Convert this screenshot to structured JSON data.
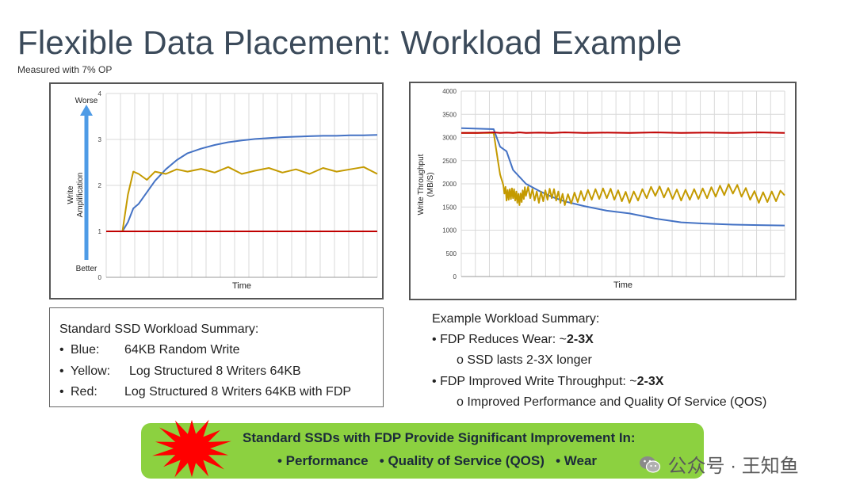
{
  "title": "Flexible Data Placement:  Workload Example",
  "subtitle": "Measured with 7% OP",
  "chart_data": [
    {
      "type": "line",
      "title": "",
      "xlabel": "Time",
      "ylabel": "Write Amplification",
      "ylim": [
        0,
        4
      ],
      "yticks": [
        "0",
        "1",
        "2",
        "3",
        "4"
      ],
      "annotations": [
        "Worse",
        "Better"
      ],
      "grid": true,
      "x": [
        0,
        0.06,
        0.08,
        0.1,
        0.12,
        0.15,
        0.18,
        0.22,
        0.26,
        0.3,
        0.35,
        0.4,
        0.45,
        0.5,
        0.55,
        0.6,
        0.65,
        0.7,
        0.75,
        0.8,
        0.85,
        0.9,
        0.95,
        1.0
      ],
      "series": [
        {
          "name": "Blue",
          "color": "#4472c4",
          "values": [
            1.0,
            1.0,
            1.2,
            1.5,
            1.6,
            1.85,
            2.1,
            2.35,
            2.55,
            2.7,
            2.8,
            2.88,
            2.94,
            2.98,
            3.01,
            3.03,
            3.05,
            3.06,
            3.07,
            3.08,
            3.08,
            3.09,
            3.09,
            3.1
          ]
        },
        {
          "name": "Yellow",
          "color": "#c49a00",
          "values": [
            1.0,
            1.0,
            1.8,
            2.3,
            2.25,
            2.12,
            2.3,
            2.25,
            2.35,
            2.3,
            2.36,
            2.28,
            2.4,
            2.25,
            2.32,
            2.38,
            2.28,
            2.35,
            2.25,
            2.38,
            2.3,
            2.35,
            2.4,
            2.25
          ]
        },
        {
          "name": "Red",
          "color": "#c00000",
          "values": [
            1.0,
            1.0,
            1.0,
            1.0,
            1.0,
            1.0,
            1.0,
            1.0,
            1.0,
            1.0,
            1.0,
            1.0,
            1.0,
            1.0,
            1.0,
            1.0,
            1.0,
            1.0,
            1.0,
            1.0,
            1.0,
            1.0,
            1.0,
            1.0
          ]
        }
      ]
    },
    {
      "type": "line",
      "title": "",
      "xlabel": "Time",
      "ylabel": "Write Throughput (MB/S)",
      "ylim": [
        0,
        4000
      ],
      "yticks": [
        "0",
        "500",
        "1000",
        "1500",
        "2000",
        "2500",
        "3000",
        "3500",
        "4000"
      ],
      "grid": true,
      "x": [
        0,
        0.05,
        0.1,
        0.12,
        0.14,
        0.16,
        0.18,
        0.2,
        0.24,
        0.28,
        0.32,
        0.38,
        0.45,
        0.52,
        0.6,
        0.68,
        0.76,
        0.84,
        0.92,
        1.0
      ],
      "series": [
        {
          "name": "Blue",
          "color": "#4472c4",
          "values": [
            3200,
            3190,
            3180,
            2800,
            2700,
            2300,
            2150,
            2000,
            1850,
            1720,
            1620,
            1520,
            1420,
            1360,
            1250,
            1170,
            1140,
            1120,
            1110,
            1100
          ]
        },
        {
          "name": "Yellow",
          "color": "#c49a00",
          "values": [
            3100,
            3100,
            3100,
            2200,
            1750,
            1800,
            1650,
            1850,
            1700,
            1800,
            1650,
            1750,
            1800,
            1700,
            1850,
            1750,
            1800,
            1900,
            1700,
            1750
          ]
        },
        {
          "name": "Red",
          "color": "#c00000",
          "values": [
            3100,
            3100,
            3110,
            3100,
            3105,
            3100,
            3110,
            3100,
            3105,
            3100,
            3110,
            3100,
            3105,
            3100,
            3110,
            3100,
            3105,
            3100,
            3110,
            3100
          ]
        }
      ]
    }
  ],
  "summary_box": {
    "title": "Standard SSD Workload Summary:",
    "bullet": "•",
    "rows": [
      {
        "key": "Blue:",
        "value": "64KB Random Write"
      },
      {
        "key": "Yellow:",
        "value": "Log Structured 8 Writers 64KB"
      },
      {
        "key": "Red:",
        "value": "Log Structured 8 Writers 64KB with FDP"
      }
    ]
  },
  "example": {
    "title": "Example Workload Summary:",
    "line1_prefix": "FDP Reduces Wear:  ~",
    "line1_bold": "2-3X",
    "line1_sub": "SSD lasts 2-3X longer",
    "line2_prefix": "FDP Improved Write Throughput:  ~",
    "line2_bold": "2-3X",
    "line2_sub": "Improved Performance and Quality Of Service (QOS)",
    "bullet": "•",
    "sub_bullet": "o"
  },
  "banner": {
    "title": "Standard SSDs with FDP Provide Significant Improvement In:",
    "items": [
      "• Performance",
      "• Quality of Service (QOS)",
      "• Wear"
    ],
    "bg_color": "#8cd140",
    "burst_color": "#ff0000"
  },
  "watermark": {
    "text": "公众号 · 王知鱼",
    "icon": "wechat-icon"
  }
}
